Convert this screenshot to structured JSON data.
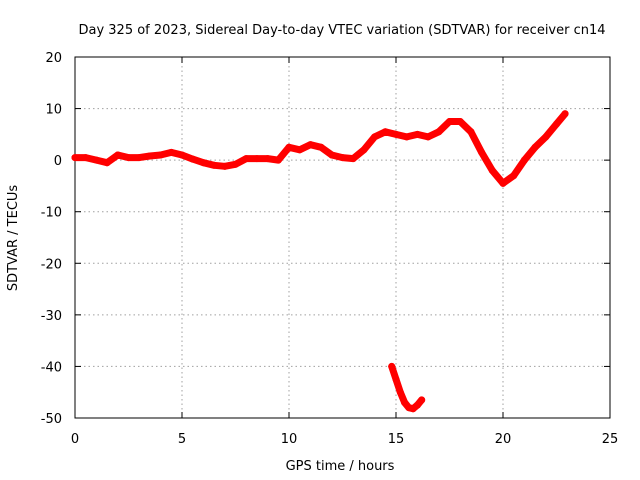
{
  "chart_data": {
    "type": "scatter",
    "title": "Day 325 of 2023, Sidereal Day-to-day VTEC variation (SDTVAR) for receiver cn14",
    "xlabel": "GPS time / hours",
    "ylabel": "SDTVAR / TECUs",
    "xlim": [
      0,
      25
    ],
    "ylim": [
      -50,
      20
    ],
    "xticks": [
      0,
      5,
      10,
      15,
      20,
      25
    ],
    "yticks": [
      -50,
      -40,
      -30,
      -20,
      -10,
      0,
      10,
      20
    ],
    "xtick_labels": [
      "0",
      "5",
      "10",
      "15",
      "20",
      "25"
    ],
    "ytick_labels": [
      "-50",
      "-40",
      "-30",
      "-20",
      "-10",
      "0",
      "10",
      "20"
    ],
    "grid": true,
    "series_color": "#ff0000",
    "series": [
      {
        "name": "main-trace",
        "x": [
          0.0,
          0.5,
          1.0,
          1.5,
          2.0,
          2.5,
          3.0,
          3.5,
          4.0,
          4.5,
          5.0,
          5.5,
          6.0,
          6.5,
          7.0,
          7.5,
          8.0,
          8.5,
          9.0,
          9.5,
          10.0,
          10.5,
          11.0,
          11.5,
          12.0,
          12.5,
          13.0,
          13.5,
          14.0,
          14.5,
          15.0,
          15.5,
          16.0,
          16.5,
          17.0,
          17.5,
          18.0,
          18.5,
          19.0,
          19.5,
          20.0,
          20.5,
          21.0,
          21.5,
          22.0,
          22.5,
          22.9
        ],
        "y": [
          0.5,
          0.5,
          0.0,
          -0.5,
          1.0,
          0.5,
          0.5,
          0.8,
          1.0,
          1.5,
          1.0,
          0.2,
          -0.5,
          -1.0,
          -1.2,
          -0.8,
          0.3,
          0.3,
          0.3,
          0.0,
          2.5,
          2.0,
          3.0,
          2.5,
          1.0,
          0.5,
          0.3,
          2.0,
          4.5,
          5.5,
          5.0,
          4.5,
          5.0,
          4.5,
          5.5,
          7.5,
          7.5,
          5.5,
          1.5,
          -2.0,
          -4.5,
          -3.0,
          0.0,
          2.5,
          4.5,
          7.0,
          9.0
        ]
      },
      {
        "name": "low-segment",
        "x": [
          14.8,
          15.0,
          15.2,
          15.4,
          15.6,
          15.8,
          16.0,
          16.2
        ],
        "y": [
          -40.0,
          -42.5,
          -45.0,
          -47.0,
          -48.0,
          -48.2,
          -47.5,
          -46.5
        ]
      }
    ]
  }
}
